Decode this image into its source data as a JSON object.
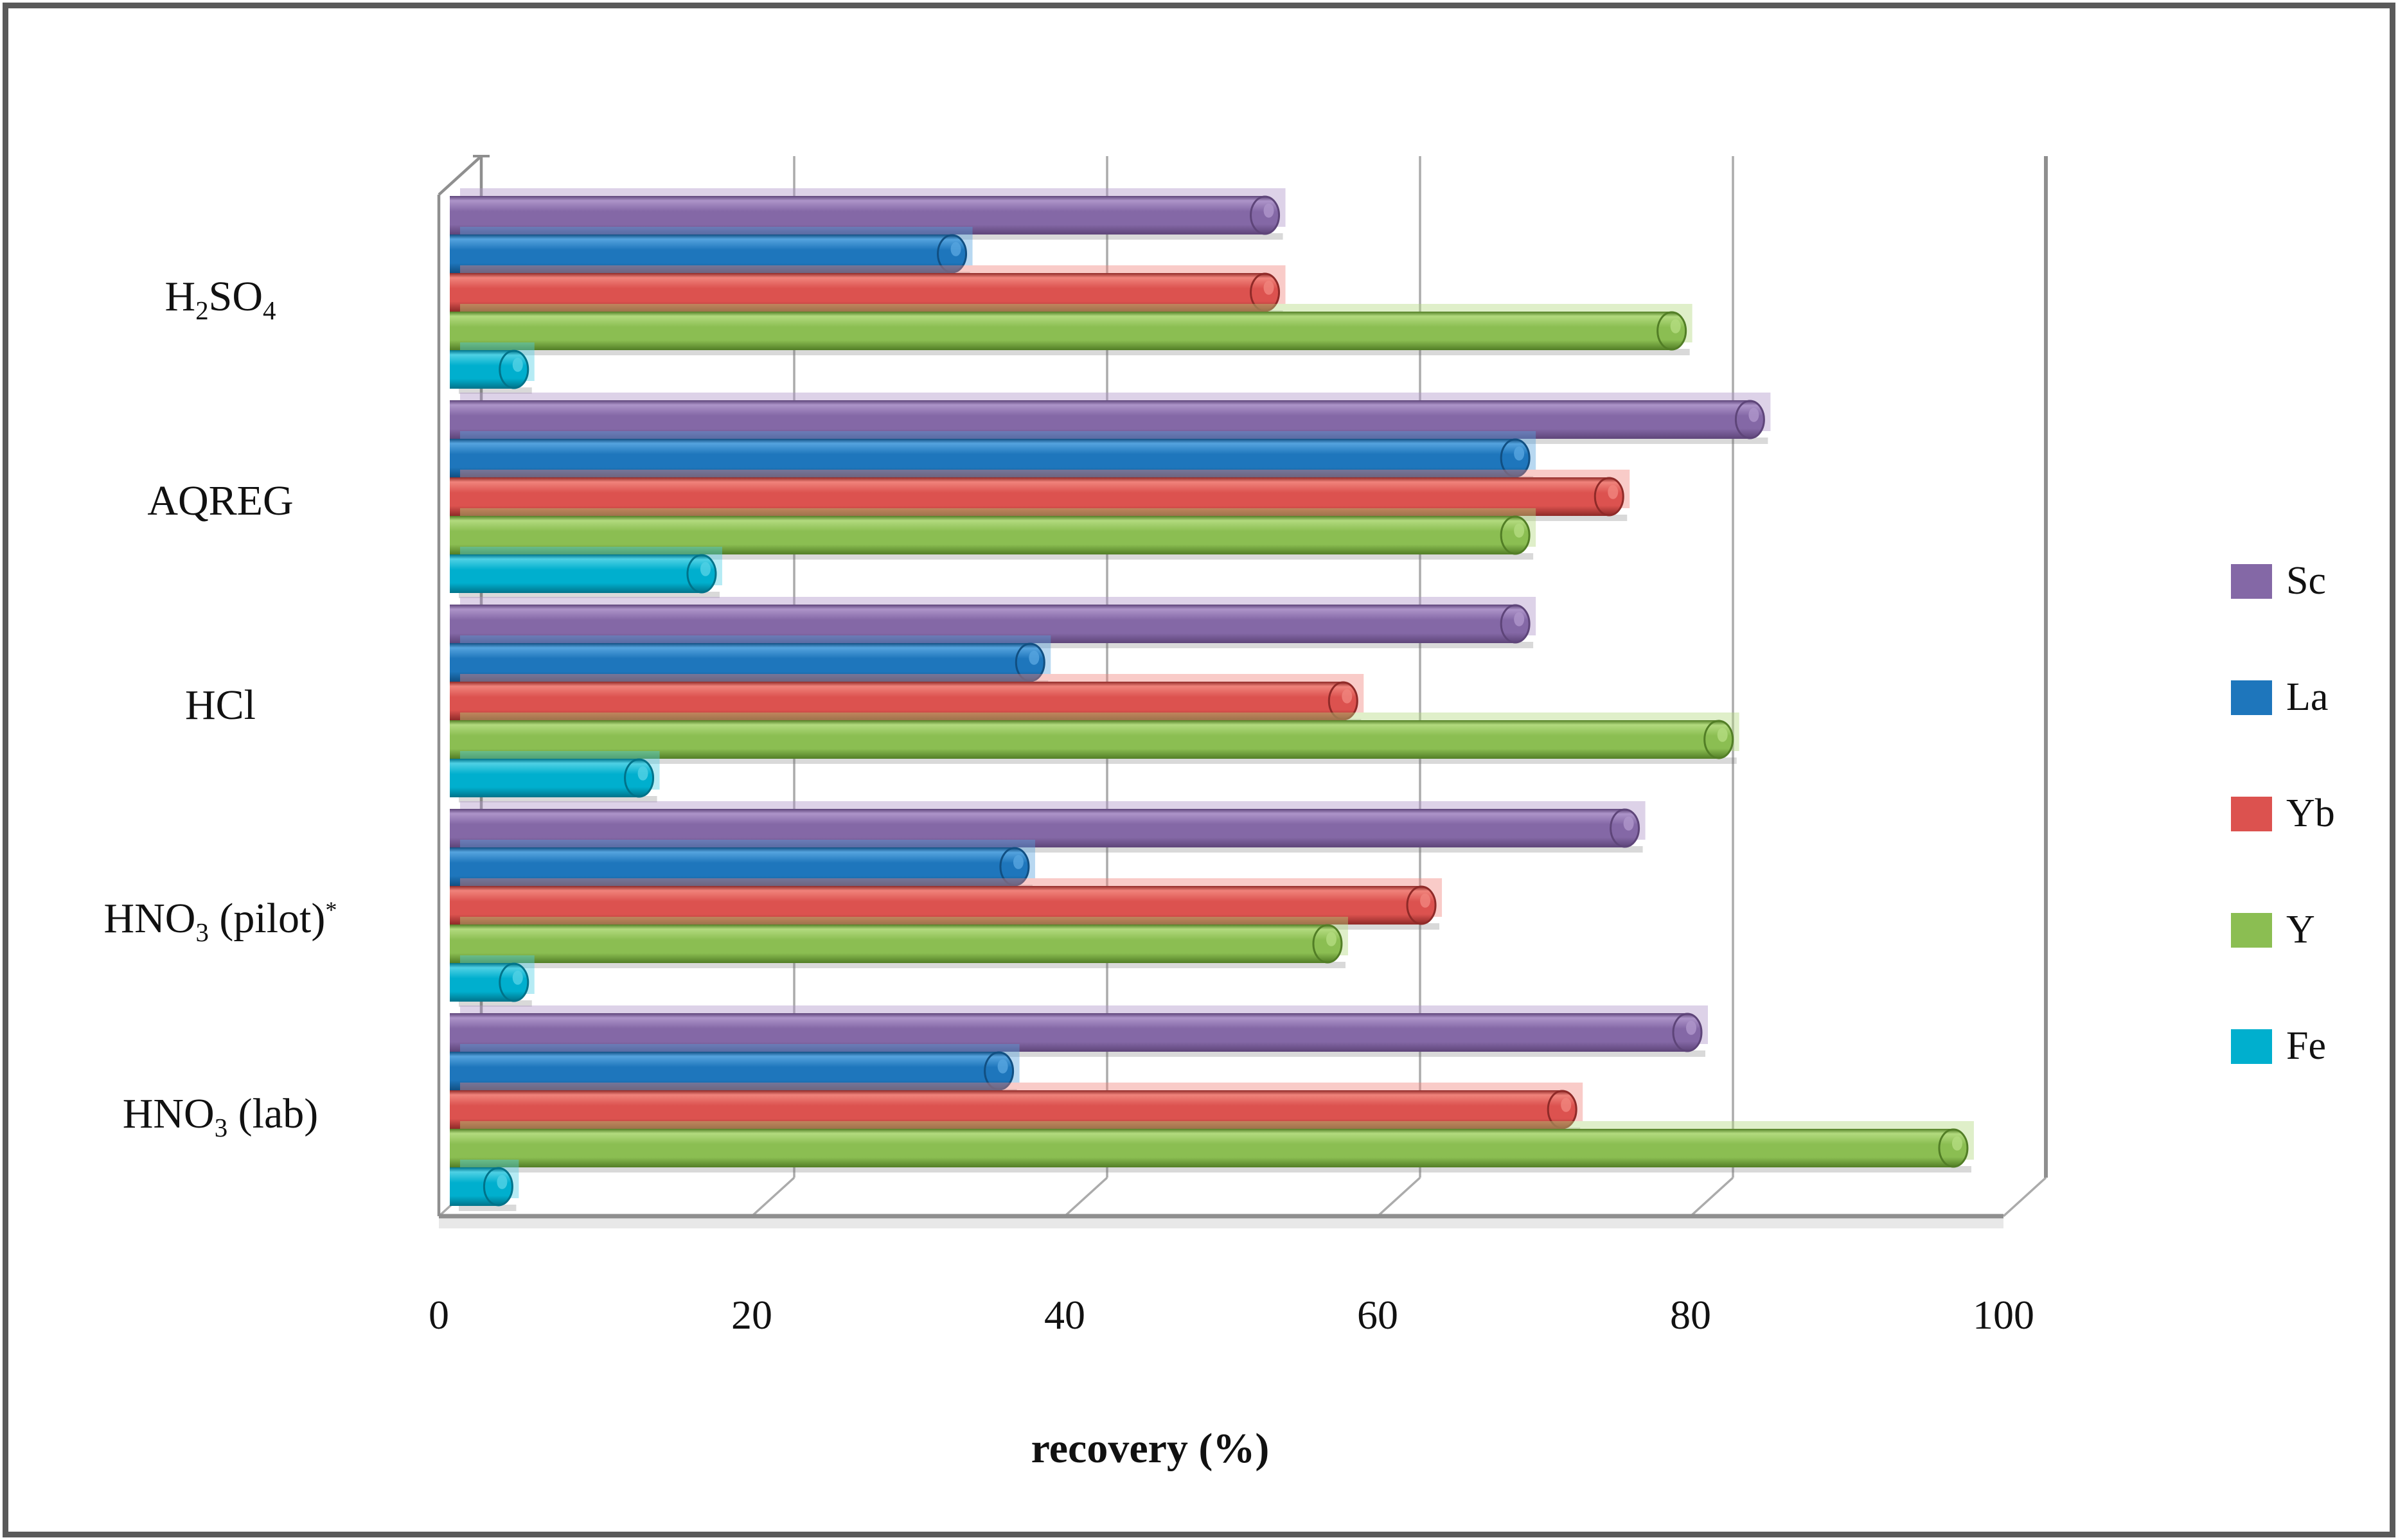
{
  "figure": {
    "background": "#ffffff",
    "border_color": "#5a5a5a"
  },
  "chart_data": {
    "type": "bar",
    "orientation": "horizontal",
    "style": "3d-cylinder",
    "title": "",
    "xlabel": "recovery (%)",
    "ylabel": "",
    "xlim": [
      0,
      100
    ],
    "x_ticks": [
      0,
      20,
      40,
      60,
      80,
      100
    ],
    "grid": true,
    "legend_position": "right",
    "gridline_color": "#ababab",
    "axis_color": "#8f8f8f",
    "floor_strip_color": "#e8e8e8",
    "categories": [
      "H_{2}SO_{4}",
      "AQREG",
      "HCl",
      "HNO_{3} (pilot)^{*}",
      "HNO_{3} (lab)"
    ],
    "series": [
      {
        "name": "Sc",
        "color": "#8468A6",
        "light": "#AD94C9",
        "dark": "#5E4579",
        "values": [
          53,
          84,
          69,
          76,
          80
        ]
      },
      {
        "name": "La",
        "color": "#1E76BC",
        "light": "#55A3DE",
        "dark": "#114F82",
        "values": [
          33,
          69,
          38,
          37,
          36
        ]
      },
      {
        "name": "Yb",
        "color": "#DC524F",
        "light": "#F0837B",
        "dark": "#8F2A28",
        "values": [
          53,
          75,
          58,
          63,
          72
        ]
      },
      {
        "name": "Y",
        "color": "#8BBE52",
        "light": "#B2DA7E",
        "dark": "#527E26",
        "values": [
          79,
          69,
          82,
          57,
          97
        ]
      },
      {
        "name": "Fe",
        "color": "#00AFCE",
        "light": "#4FD0E4",
        "dark": "#00738A",
        "values": [
          5,
          17,
          13,
          5,
          4
        ]
      }
    ]
  }
}
